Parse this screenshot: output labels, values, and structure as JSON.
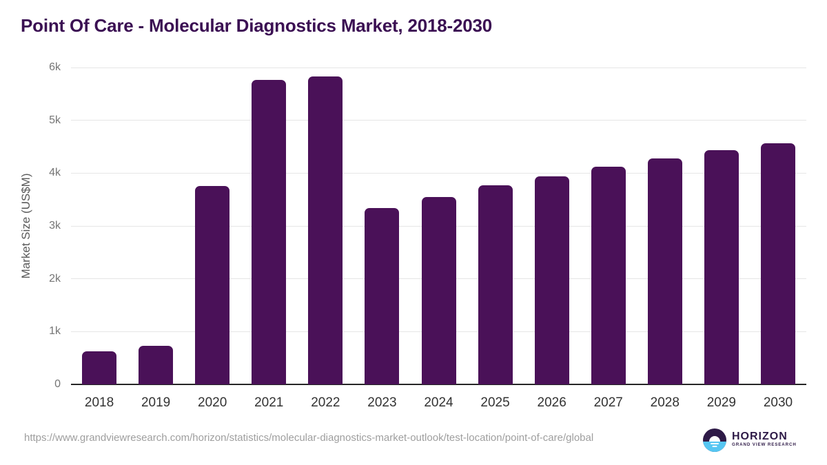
{
  "title": "Point Of Care - Molecular Diagnostics Market, 2018-2030",
  "footer": {
    "source_url": "https://www.grandviewresearch.com/horizon/statistics/molecular-diagnostics-market-outlook/test-location/point-of-care/global",
    "logo": {
      "brand": "HORIZON",
      "sub_brand": "GRAND VIEW RESEARCH",
      "icon": "horizon-sun-over-water-icon"
    }
  },
  "colors": {
    "bar": "#4a1158",
    "title": "#3b1053",
    "gridline": "#e6e6e6",
    "axis_line": "#262626",
    "y_tick_label": "#757575",
    "x_tick_label": "#333333",
    "axis_title": "#595959",
    "url_text": "#9e9e9e",
    "logo_dark": "#2e1a47",
    "logo_blue": "#56c6f2"
  },
  "chart_data": {
    "type": "bar",
    "title": "Point Of Care - Molecular Diagnostics Market, 2018-2030",
    "categories": [
      "2018",
      "2019",
      "2020",
      "2021",
      "2022",
      "2023",
      "2024",
      "2025",
      "2026",
      "2027",
      "2028",
      "2029",
      "2030"
    ],
    "values": [
      630,
      730,
      3760,
      5770,
      5830,
      3340,
      3550,
      3770,
      3940,
      4120,
      4280,
      4430,
      4560
    ],
    "units": "US$M",
    "xlabel": "",
    "ylabel": "Market Size (US$M)",
    "ylim": [
      0,
      6000
    ],
    "ytick_labels": [
      "0",
      "1k",
      "2k",
      "3k",
      "4k",
      "5k",
      "6k"
    ],
    "grid": "horizontal",
    "legend": "none",
    "bar_color": "#4a1158"
  }
}
